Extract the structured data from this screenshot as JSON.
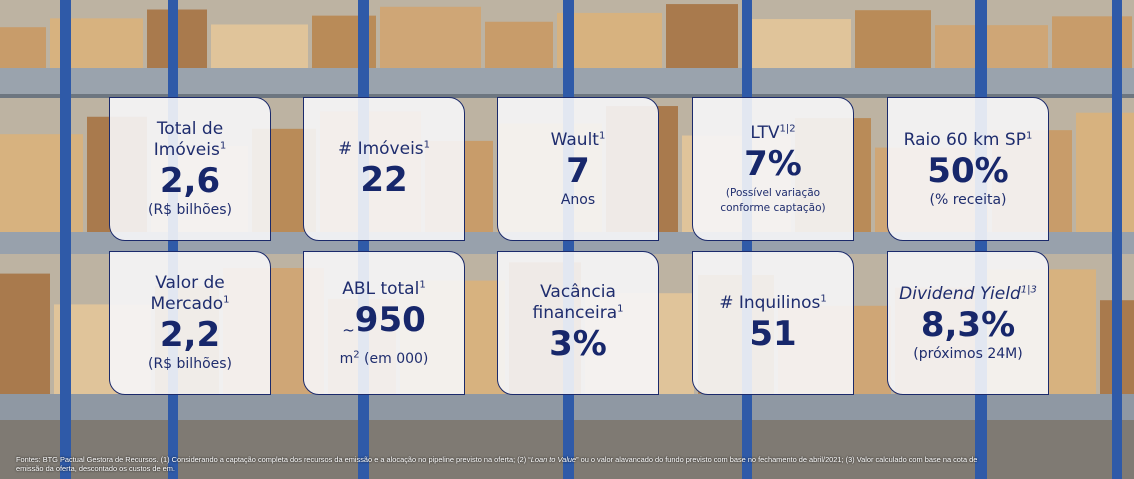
{
  "cards": [
    {
      "label": "Total de Imóveis",
      "label_sup": "1",
      "value": "2,6",
      "note": "(R$ bilhões)"
    },
    {
      "label": "# Imóveis",
      "label_sup": "1",
      "value": "22"
    },
    {
      "label": "Wault",
      "label_sup": "1",
      "value": "7",
      "note": "Anos"
    },
    {
      "label": "LTV",
      "label_sup": "1|2",
      "value": "7%",
      "note": "(Possível variação conforme captação)"
    },
    {
      "label": "Raio 60 km SP",
      "label_sup": "1",
      "value": "50%",
      "note": "(% receita)"
    },
    {
      "label": "Valor de Mercado",
      "label_sup": "1",
      "value": "2,2",
      "note": "(R$ bilhões)"
    },
    {
      "label": "ABL total",
      "label_sup": "1",
      "value_prefix": "~",
      "value": "950",
      "note": "m",
      "note_sup": "2",
      "note_after": "(em 000)"
    },
    {
      "label": "Vacância financeira",
      "label_sup": "1",
      "value": "3%"
    },
    {
      "label": "# Inquilinos",
      "label_sup": "1",
      "value": "51"
    },
    {
      "label": "Dividend Yield",
      "label_italic": true,
      "label_sup": "1|3",
      "value": "8,3%",
      "note": "(próximos 24M)"
    }
  ],
  "footnote": {
    "parts": [
      {
        "text": "Fontes: BTG Pactual Gestora de Recursos. (1) Considerando a captação completa dos recursos da emissão e a alocação no pipeline previsto na oferta; (2) “"
      },
      {
        "text": "Loan to Value",
        "italic": true
      },
      {
        "text": "” ou o valor alavancado do fundo previsto com base no fechamento de abril/2021; (3) Valor calculado com base na cota de emissão da oferta, descontado os custos de em."
      }
    ]
  }
}
